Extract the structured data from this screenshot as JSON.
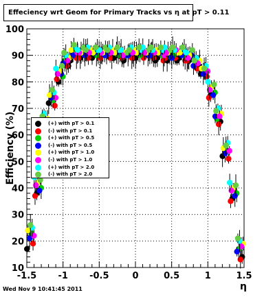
{
  "title": "Effeciency wrt Geom for Primary Tracks vs    η at pT > 0.11",
  "footer": "Wed Nov  9 10:41:45 2011",
  "chart_data": {
    "type": "scatter",
    "title": "Effeciency wrt Geom for Primary Tracks vs    η at pT > 0.11",
    "xlabel": "η",
    "ylabel": "Efficiency (%)",
    "xlim": [
      -1.5,
      1.5
    ],
    "ylim": [
      10,
      100
    ],
    "x_ticks": [
      -1.5,
      -1,
      -0.5,
      0,
      0.5,
      1,
      1.5
    ],
    "x_tick_labels": [
      "-1.5",
      "-1",
      "-0.5",
      "0",
      "0.5",
      "1",
      "1.5"
    ],
    "y_ticks": [
      10,
      20,
      30,
      40,
      50,
      60,
      70,
      80,
      90,
      100
    ],
    "y_tick_labels": [
      "10",
      "20",
      "30",
      "40",
      "50",
      "60",
      "70",
      "80",
      "90",
      "100"
    ],
    "grid": true,
    "legend_position": "middle-left",
    "x": [
      -1.45,
      -1.35,
      -1.25,
      -1.15,
      -1.05,
      -0.95,
      -0.85,
      -0.75,
      -0.65,
      -0.55,
      -0.45,
      -0.35,
      -0.25,
      -0.15,
      -0.05,
      0.05,
      0.15,
      0.25,
      0.35,
      0.45,
      0.55,
      0.65,
      0.75,
      0.85,
      0.95,
      1.05,
      1.15,
      1.25,
      1.35,
      1.45
    ],
    "series": [
      {
        "name": "(+) with pT > 0.1",
        "color": "#000000",
        "values": [
          17,
          38,
          62,
          72,
          80,
          86,
          88,
          89,
          90,
          89,
          90,
          89,
          89,
          88,
          89,
          89,
          90,
          88,
          89,
          88,
          88,
          89,
          88,
          86,
          83,
          75,
          65,
          52,
          36,
          14
        ]
      },
      {
        "name": "(-) with pT > 0.1",
        "color": "#ff0000",
        "values": [
          19,
          37,
          63,
          71,
          81,
          86,
          89,
          89,
          89,
          90,
          89,
          89,
          90,
          89,
          89,
          90,
          89,
          89,
          88,
          89,
          89,
          88,
          88,
          85,
          82,
          74,
          64,
          51,
          35,
          13
        ]
      },
      {
        "name": "(+) with pT > 0.5",
        "color": "#00cc00",
        "values": [
          23,
          40,
          65,
          73,
          82,
          88,
          91,
          90,
          91,
          90,
          90,
          91,
          90,
          90,
          91,
          90,
          90,
          91,
          90,
          89,
          90,
          90,
          89,
          87,
          84,
          76,
          66,
          54,
          38,
          17
        ]
      },
      {
        "name": "(-) with pT > 0.5",
        "color": "#0000ff",
        "values": [
          21,
          39,
          64,
          74,
          83,
          87,
          90,
          91,
          90,
          91,
          90,
          90,
          91,
          90,
          90,
          91,
          90,
          90,
          91,
          90,
          89,
          90,
          90,
          86,
          83,
          75,
          67,
          53,
          37,
          16
        ]
      },
      {
        "name": "(+) with pT > 1.0",
        "color": "#ffff00",
        "values": [
          24,
          42,
          66,
          75,
          84,
          89,
          92,
          91,
          92,
          91,
          91,
          92,
          91,
          91,
          92,
          91,
          91,
          92,
          91,
          91,
          91,
          91,
          90,
          88,
          85,
          78,
          68,
          55,
          40,
          19
        ]
      },
      {
        "name": "(-) with pT > 1.0",
        "color": "#ff00ff",
        "values": [
          22,
          41,
          65,
          74,
          83,
          88,
          91,
          91,
          91,
          92,
          91,
          91,
          92,
          90,
          91,
          92,
          91,
          91,
          90,
          91,
          92,
          91,
          89,
          87,
          84,
          77,
          67,
          54,
          39,
          18
        ]
      },
      {
        "name": "(+) with pT > 2.0",
        "color": "#00ffff",
        "values": [
          25,
          44,
          68,
          76,
          85,
          90,
          93,
          92,
          93,
          92,
          92,
          93,
          92,
          92,
          93,
          92,
          93,
          92,
          92,
          93,
          92,
          92,
          91,
          89,
          86,
          80,
          70,
          57,
          42,
          20
        ]
      },
      {
        "name": "(-) with pT > 2.0",
        "color": "#66cc44",
        "values": [
          26,
          43,
          67,
          77,
          86,
          91,
          94,
          93,
          92,
          93,
          93,
          92,
          93,
          91,
          92,
          93,
          92,
          93,
          93,
          92,
          93,
          93,
          92,
          88,
          85,
          79,
          69,
          56,
          41,
          21
        ]
      }
    ]
  }
}
